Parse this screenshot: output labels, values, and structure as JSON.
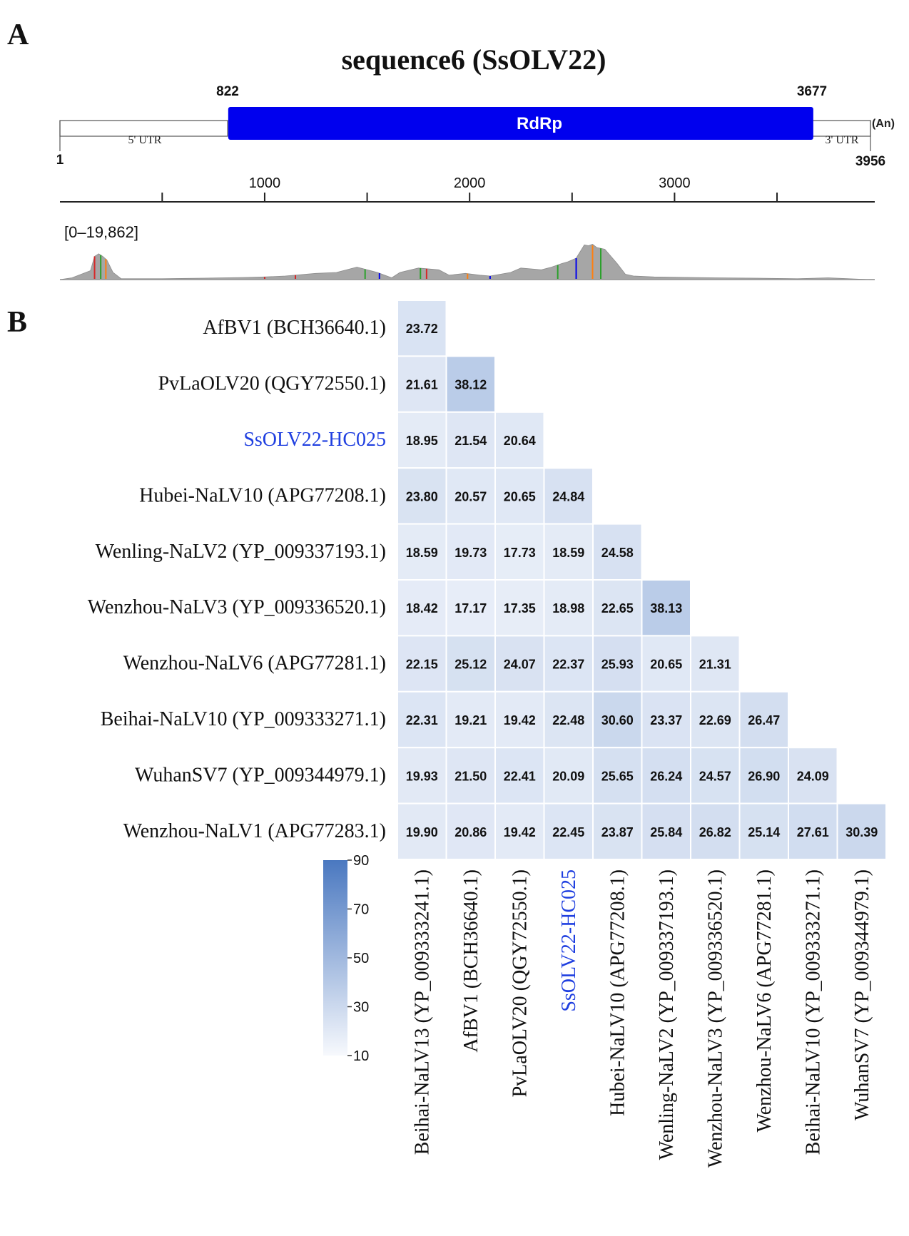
{
  "panel_a": {
    "panel_label": "A",
    "title": "sequence6 (SsOLV22)",
    "genome": {
      "start": "1",
      "end": "3956",
      "orf_start": "822",
      "orf_end": "3677",
      "orf_label": "RdRp",
      "utr5_label": "5' UTR",
      "utr3_label": "3' UTR",
      "polya_label": "(An)",
      "colors": {
        "orf": "#0000ee",
        "coverage": "#a6a6a6"
      }
    },
    "ruler": {
      "domain": [
        1,
        3956
      ],
      "tick_labels": [
        "1000",
        "2000",
        "3000"
      ],
      "label_values": [
        1000,
        2000,
        3000
      ],
      "minor_values": [
        500,
        1500,
        2500,
        3500
      ]
    },
    "coverage": {
      "range_label": "[0–19,862]",
      "profile_x": [
        1,
        60,
        150,
        170,
        190,
        210,
        230,
        260,
        300,
        500,
        700,
        900,
        1000,
        1100,
        1250,
        1350,
        1450,
        1550,
        1620,
        1660,
        1750,
        1850,
        1900,
        1980,
        2050,
        2100,
        2200,
        2250,
        2300,
        2350,
        2400,
        2450,
        2480,
        2520,
        2560,
        2580,
        2600,
        2620,
        2660,
        2720,
        2760,
        2800,
        2900,
        3200,
        3400,
        3600,
        3750,
        3950
      ],
      "profile_y": [
        0,
        1000,
        5000,
        13000,
        14500,
        13000,
        11000,
        4000,
        500,
        500,
        800,
        1200,
        1500,
        2000,
        3500,
        4000,
        7000,
        4000,
        1000,
        4000,
        6500,
        5500,
        2500,
        3500,
        2500,
        2000,
        4000,
        6500,
        6000,
        5500,
        7000,
        9000,
        10000,
        12000,
        19500,
        19000,
        19800,
        18000,
        17000,
        9000,
        3000,
        2000,
        1500,
        1000,
        800,
        500,
        1000,
        0
      ],
      "variant_marks": [
        {
          "pos": 170,
          "color": "#d62728"
        },
        {
          "pos": 200,
          "color": "#2ca02c"
        },
        {
          "pos": 225,
          "color": "#ff7f0e"
        },
        {
          "pos": 1000,
          "color": "#d62728"
        },
        {
          "pos": 1150,
          "color": "#d62728"
        },
        {
          "pos": 1490,
          "color": "#2ca02c"
        },
        {
          "pos": 1560,
          "color": "#0000ee"
        },
        {
          "pos": 1760,
          "color": "#2ca02c"
        },
        {
          "pos": 1790,
          "color": "#d62728"
        },
        {
          "pos": 1990,
          "color": "#ff7f0e"
        },
        {
          "pos": 2100,
          "color": "#0000ee"
        },
        {
          "pos": 2430,
          "color": "#2ca02c"
        },
        {
          "pos": 2520,
          "color": "#0000ee"
        },
        {
          "pos": 2600,
          "color": "#ff7f0e"
        },
        {
          "pos": 2640,
          "color": "#2ca02c"
        }
      ]
    }
  },
  "panel_b": {
    "panel_label": "B",
    "highlight_color": "#1f3fe0"
  },
  "chart_data": {
    "type": "heatmap",
    "layout": "lower-triangle",
    "row_labels": [
      "AfBV1 (BCH36640.1)",
      "PvLaOLV20 (QGY72550.1)",
      "SsOLV22-HC025",
      "Hubei-NaLV10 (APG77208.1)",
      "Wenling-NaLV2 (YP_009337193.1)",
      "Wenzhou-NaLV3 (YP_009336520.1)",
      "Wenzhou-NaLV6 (APG77281.1)",
      "Beihai-NaLV10 (YP_009333271.1)",
      "WuhanSV7 (YP_009344979.1)",
      "Wenzhou-NaLV1 (APG77283.1)"
    ],
    "column_labels": [
      "Beihai-NaLV13 (YP_009333241.1)",
      "AfBV1 (BCH36640.1)",
      "PvLaOLV20 (QGY72550.1)",
      "SsOLV22-HC025",
      "Hubei-NaLV10 (APG77208.1)",
      "Wenling-NaLV2 (YP_009337193.1)",
      "Wenzhou-NaLV3 (YP_009336520.1)",
      "Wenzhou-NaLV6 (APG77281.1)",
      "Beihai-NaLV10 (YP_009333271.1)",
      "WuhanSV7 (YP_009344979.1)"
    ],
    "highlighted_label": "SsOLV22-HC025",
    "values": [
      [
        "23.72"
      ],
      [
        "21.61",
        "38.12"
      ],
      [
        "18.95",
        "21.54",
        "20.64"
      ],
      [
        "23.80",
        "20.57",
        "20.65",
        "24.84"
      ],
      [
        "18.59",
        "19.73",
        "17.73",
        "18.59",
        "24.58"
      ],
      [
        "18.42",
        "17.17",
        "17.35",
        "18.98",
        "22.65",
        "38.13"
      ],
      [
        "22.15",
        "25.12",
        "24.07",
        "22.37",
        "25.93",
        "20.65",
        "21.31"
      ],
      [
        "22.31",
        "19.21",
        "19.42",
        "22.48",
        "30.60",
        "23.37",
        "22.69",
        "26.47"
      ],
      [
        "19.93",
        "21.50",
        "22.41",
        "20.09",
        "25.65",
        "26.24",
        "24.57",
        "26.90",
        "24.09"
      ],
      [
        "19.90",
        "20.86",
        "19.42",
        "22.45",
        "23.87",
        "25.84",
        "26.82",
        "25.14",
        "27.61",
        "30.39"
      ]
    ],
    "colorbar": {
      "min": 10,
      "max": 90,
      "tick_values": [
        10,
        30,
        50,
        70,
        90
      ],
      "tick_labels": [
        "10",
        "30",
        "50",
        "70",
        "90"
      ],
      "color_low": "#f7f9fd",
      "color_high": "#4a78c0"
    }
  }
}
